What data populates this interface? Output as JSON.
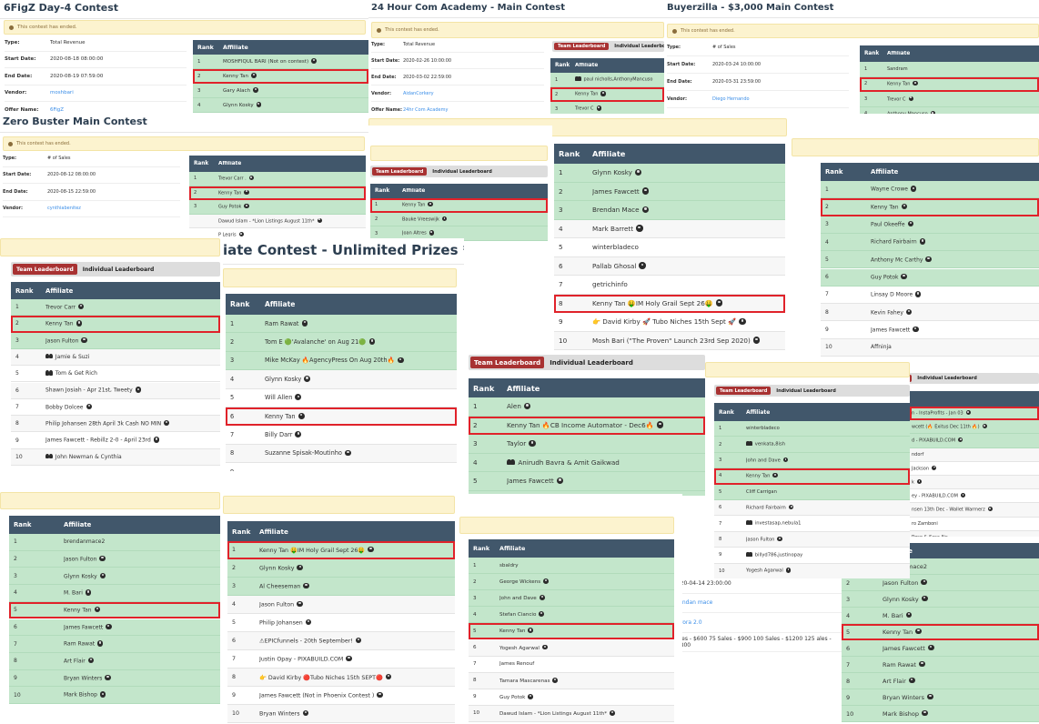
{
  "colors": {
    "header": "#41576b",
    "qualified_row": "#c3e6cb",
    "highlight": "#e0222a",
    "alert_bg": "#fcf3cf",
    "active_tab": "#a83232",
    "link": "#3b8ee8"
  },
  "panels": [
    {
      "title": "6FigZ Day-4 Contest",
      "alert": "This contest has ended.",
      "details": [
        {
          "label": "Type:",
          "value": "Total Revenue"
        },
        {
          "label": "Start Date:",
          "value": "2020-08-18 08:00:00"
        },
        {
          "label": "End Date:",
          "value": "2020-08-19 07:59:00"
        },
        {
          "label": "Vendor:",
          "value": "moshbari",
          "link": true
        },
        {
          "label": "Offer Name:",
          "value": "6FigZ",
          "link": true
        }
      ],
      "headers": [
        "Rank",
        "Affiliate"
      ],
      "rows": [
        {
          "rank": "1",
          "name": "MOSHFIQUL BARI (Not on contest)",
          "icon": "user",
          "green": true
        },
        {
          "rank": "2",
          "name": "Kenny Tan",
          "icon": "user",
          "green": true,
          "highlight": true
        },
        {
          "rank": "3",
          "name": "Gary Alach",
          "icon": "user",
          "green": true
        },
        {
          "rank": "4",
          "name": "Glynn Kosky",
          "icon": "user",
          "green": true
        }
      ]
    },
    {
      "title": "24 Hour Com Academy - Main Contest",
      "alert": "This contest has ended.",
      "details": [
        {
          "label": "Type:",
          "value": "Total Revenue"
        },
        {
          "label": "Start Date:",
          "value": "2020-02-26 10:00:00"
        },
        {
          "label": "End Date:",
          "value": "2020-03-02 22:59:00"
        },
        {
          "label": "Vendor:",
          "value": "AidanCorkery",
          "link": true
        },
        {
          "label": "Offer Name:",
          "value": "24hr Com Academy",
          "link": true
        }
      ],
      "tabs": [
        "Team Leaderboard",
        "Individual Leaderboard"
      ],
      "headers": [
        "Rank",
        "Affiliate"
      ],
      "rows": [
        {
          "rank": "1",
          "name": "paul nicholls,AnthonyMancuso",
          "icon": "team",
          "green": true
        },
        {
          "rank": "2",
          "name": "Kenny Tan",
          "icon": "user",
          "green": true,
          "highlight": true
        },
        {
          "rank": "3",
          "name": "Trevor C",
          "icon": "user",
          "green": true
        }
      ]
    },
    {
      "title": "Buyerzilla - $3,000 Main Contest",
      "alert": "This contest has ended.",
      "details": [
        {
          "label": "Type:",
          "value": "# of Sales"
        },
        {
          "label": "Start Date:",
          "value": "2020-03-24 10:00:00"
        },
        {
          "label": "End Date:",
          "value": "2020-03-31 23:59:00"
        },
        {
          "label": "Vendor:",
          "value": "Diego Hernando",
          "link": true
        }
      ],
      "headers": [
        "Rank",
        "Affiliate"
      ],
      "rows": [
        {
          "rank": "1",
          "name": "Sandram",
          "green": true
        },
        {
          "rank": "2",
          "name": "Kenny Tan",
          "icon": "user",
          "green": true,
          "highlight": true
        },
        {
          "rank": "3",
          "name": "Trevor C",
          "icon": "user",
          "green": true
        },
        {
          "rank": "4",
          "name": "Anthony Mancuso",
          "icon": "user",
          "green": true
        }
      ]
    },
    {
      "title": "Zero Buster Main Contest",
      "alert": "This contest has ended.",
      "details": [
        {
          "label": "Type:",
          "value": "# of Sales"
        },
        {
          "label": "Start Date:",
          "value": "2020-08-12 08:00:00"
        },
        {
          "label": "End Date:",
          "value": "2020-08-15 22:59:00"
        },
        {
          "label": "Vendor:",
          "value": "cynthiabenitez",
          "link": true
        }
      ],
      "headers": [
        "Rank",
        "Affiliate"
      ],
      "rows": [
        {
          "rank": "1",
          "name": "Trevor Carr .",
          "icon": "user",
          "green": true
        },
        {
          "rank": "2",
          "name": "Kenny Tan",
          "icon": "user",
          "green": true,
          "highlight": true
        },
        {
          "rank": "3",
          "name": "Guy Potok",
          "icon": "user",
          "green": true
        },
        {
          "name": "Dawud Islam - *Lion Listings August 11th*",
          "icon": "user"
        },
        {
          "name": "P Legris",
          "icon": "user"
        }
      ]
    },
    {
      "alert": "",
      "headers": [
        "Rank",
        "Affiliate"
      ],
      "rows": [
        {
          "rank": "1",
          "name": "Glynn Kosky",
          "icon": "user",
          "green": true
        },
        {
          "rank": "2",
          "name": "James Fawcett",
          "icon": "user",
          "green": true
        },
        {
          "rank": "3",
          "name": "Brendan Mace",
          "icon": "user",
          "green": true
        },
        {
          "rank": "4",
          "name": "Mark Barrett",
          "icon": "user"
        },
        {
          "rank": "5",
          "name": "winterbladeco"
        },
        {
          "rank": "6",
          "name": "Pallab Ghosal",
          "icon": "user"
        },
        {
          "rank": "7",
          "name": "getrichinfo"
        },
        {
          "rank": "8",
          "name": "Kenny Tan 🤑IM Holy Grail Sept 26🤑",
          "icon": "user",
          "highlight": true
        },
        {
          "rank": "9",
          "name": "👉 David Kirby 🚀 Tubo Niches 15th Sept 🚀",
          "icon": "user"
        },
        {
          "rank": "10",
          "name": "Mosh Bari (\"The Proven\" Launch 23rd Sep 2020)",
          "icon": "user"
        }
      ]
    },
    {
      "alert": "",
      "tabs": [
        "Team Leaderboard",
        "Individual Leaderboard"
      ],
      "headers": [
        "Rank",
        "Affiliate"
      ],
      "rows": [
        {
          "rank": "1",
          "name": "Kenny Tan",
          "icon": "user",
          "green": true,
          "highlight": true
        },
        {
          "rank": "2",
          "name": "Bauke Vreeswijk",
          "icon": "user",
          "green": true
        },
        {
          "rank": "3",
          "name": "Joan Altres",
          "icon": "user",
          "green": true
        }
      ]
    },
    {
      "alert": "",
      "headers": [
        "Rank",
        "Affiliate"
      ],
      "rows": [
        {
          "rank": "1",
          "name": "Wayne Crowe",
          "icon": "user",
          "green": true
        },
        {
          "rank": "2",
          "name": "Kenny Tan",
          "icon": "user",
          "green": true,
          "highlight": true
        },
        {
          "rank": "3",
          "name": "Paul Okeeffe",
          "icon": "user",
          "green": true
        },
        {
          "rank": "4",
          "name": "Richard Fairbairn",
          "icon": "user",
          "green": true
        },
        {
          "rank": "5",
          "name": "Anthony Mc Carthy",
          "icon": "user",
          "green": true
        },
        {
          "rank": "6",
          "name": "Guy Potok",
          "icon": "user",
          "green": true
        },
        {
          "rank": "7",
          "name": "Linsay D Moore",
          "icon": "user"
        },
        {
          "rank": "8",
          "name": "Kevin Fahey",
          "icon": "user"
        },
        {
          "rank": "9",
          "name": "James Fawcett",
          "icon": "user"
        },
        {
          "rank": "10",
          "name": "Affninja"
        }
      ]
    },
    {
      "alert": "",
      "tabs": [
        "Team Leaderboard",
        "Individual Leaderboard"
      ],
      "headers": [
        "Rank",
        "Affiliate"
      ],
      "rows": [
        {
          "rank": "1",
          "name": "Trevor Carr",
          "icon": "user",
          "green": true
        },
        {
          "rank": "2",
          "name": "Kenny Tan",
          "icon": "user",
          "green": true,
          "highlight": true
        },
        {
          "rank": "3",
          "name": "Jason Fulton",
          "icon": "user",
          "green": true
        },
        {
          "rank": "4",
          "name": "Jamie & Suzi",
          "icon": "team"
        },
        {
          "rank": "5",
          "name": "Tom & Get Rich",
          "icon": "team"
        },
        {
          "rank": "6",
          "name": "Shawn Josiah - Apr 21st, Tweety",
          "icon": "user"
        },
        {
          "rank": "7",
          "name": "Bobby Dolcee",
          "icon": "user"
        },
        {
          "rank": "8",
          "name": "Philip Johansen 28th April 3k Cash NO MIN",
          "icon": "user"
        },
        {
          "rank": "9",
          "name": "James Fawcett - Rebillz 2-0 - April 23rd",
          "icon": "user"
        },
        {
          "rank": "10",
          "name": "John Newman & Cynthia",
          "icon": "team"
        }
      ]
    },
    {
      "title": "iate Contest - Unlimited Prizes ***",
      "alert": "",
      "headers": [
        "Rank",
        "Affiliate"
      ],
      "rows": [
        {
          "rank": "1",
          "name": "Ram Rawat",
          "icon": "user",
          "green": true
        },
        {
          "rank": "2",
          "name": "Tom E 🟢'Avalanche' on Aug 21🟢",
          "icon": "user",
          "green": true
        },
        {
          "rank": "3",
          "name": "Mike McKay 🔥AgencyPress On Aug 20th🔥",
          "icon": "user",
          "green": true
        },
        {
          "rank": "4",
          "name": "Glynn Kosky",
          "icon": "user"
        },
        {
          "rank": "5",
          "name": "Will Allen",
          "icon": "user"
        },
        {
          "rank": "6",
          "name": "Kenny Tan",
          "icon": "user",
          "highlight": true
        },
        {
          "rank": "7",
          "name": "Billy Darr",
          "icon": "user"
        },
        {
          "rank": "8",
          "name": "Suzanne Spisak-Moutinho",
          "icon": "user"
        },
        {
          "rank": "9",
          "name": ""
        }
      ]
    },
    {
      "headers": [
        "Rank",
        "Affiliate"
      ],
      "tabs": [
        "Team Leaderboard",
        "Individual Leaderboard"
      ],
      "rows": [
        {
          "rank": "1",
          "name": "Alen",
          "icon": "user",
          "green": true
        },
        {
          "rank": "2",
          "name": "Kenny Tan 🔥CB Income Automator - Dec6🔥",
          "icon": "user",
          "green": true,
          "highlight": true
        },
        {
          "rank": "3",
          "name": "Taylor",
          "icon": "user",
          "green": true
        },
        {
          "rank": "4",
          "name": "Anirudh Bavra & Amit Gaikwad",
          "icon": "team",
          "green": true
        },
        {
          "rank": "5",
          "name": "James Fawcett",
          "icon": "user",
          "green": true
        },
        {
          "green": true
        },
        {
          "green": true
        }
      ]
    },
    {
      "tabs": [
        "Team Leaderboard",
        "Individual Leaderboard"
      ],
      "headers": [],
      "rows": [
        {
          "name": "n - InstaProfits - Jan 03",
          "icon": "user",
          "green": true,
          "highlight": true
        },
        {
          "name": "wcett (🔥 Exitus Dec 11th 🔥)",
          "icon": "user",
          "green": true
        },
        {
          "name": "d - PIXABUILD.COM",
          "icon": "user",
          "green": true
        },
        {
          "name": "ndorf"
        },
        {
          "name": "Jackson",
          "icon": "user"
        },
        {
          "name": "k",
          "icon": "user"
        },
        {
          "name": "ey - PIXABUILD.COM",
          "icon": "user"
        },
        {
          "name": "nsen 13th Dec - Wallet Warmerz",
          "icon": "user"
        },
        {
          "name": "ro Zamboni"
        },
        {
          "name": "Rose & Sasa Ilic"
        }
      ]
    },
    {
      "details": [
        {
          "value": "2020-04-14 23:00:00"
        },
        {
          "value": "brendan mace",
          "link": true
        },
        {
          "value": "Aurora 2.0",
          "link": true
        },
        {
          "value": "Sales - $600 75 Sales - $900 100 Sales - $1200 125 ales - $1800"
        }
      ],
      "headers": [
        "Rank",
        "Affiliate"
      ],
      "rows": [
        {
          "rank": "1",
          "name": "brendanmace2",
          "green": true
        },
        {
          "rank": "2",
          "name": "Jason Fulton",
          "icon": "user",
          "green": true
        },
        {
          "rank": "3",
          "name": "Glynn Kosky",
          "icon": "user",
          "green": true
        },
        {
          "rank": "4",
          "name": "M. Bari",
          "icon": "user",
          "green": true
        },
        {
          "rank": "5",
          "name": "Kenny Tan",
          "icon": "user",
          "green": true,
          "highlight": true
        },
        {
          "rank": "6",
          "name": "James Fawcett",
          "icon": "user",
          "green": true
        },
        {
          "rank": "7",
          "name": "Ram Rawat",
          "icon": "user",
          "green": true
        },
        {
          "rank": "8",
          "name": "Art Flair",
          "icon": "user",
          "green": true
        },
        {
          "rank": "9",
          "name": "Bryan Winters",
          "icon": "user",
          "green": true
        },
        {
          "rank": "10",
          "name": "Mark Bishop",
          "icon": "user",
          "green": true
        }
      ]
    },
    {
      "alert": "",
      "tabs": [
        "Team Leaderboard",
        "Individual Leaderboard"
      ],
      "headers": [
        "Rank",
        "Affiliate"
      ],
      "rows": [
        {
          "rank": "1",
          "name": "winterbladeco",
          "green": true
        },
        {
          "rank": "2",
          "name": "venkata,8ish",
          "icon": "team",
          "green": true
        },
        {
          "rank": "3",
          "name": "John and Dave",
          "icon": "user",
          "green": true
        },
        {
          "rank": "4",
          "name": "Kenny Tan",
          "icon": "user",
          "green": true,
          "highlight": true
        },
        {
          "rank": "5",
          "name": "Cliff Carrigan",
          "green": true
        },
        {
          "rank": "6",
          "name": "Richard Fairbairn",
          "icon": "user"
        },
        {
          "rank": "7",
          "name": "investasap,nebula1",
          "icon": "team"
        },
        {
          "rank": "8",
          "name": "Jason Fulton",
          "icon": "user"
        },
        {
          "rank": "9",
          "name": "billyd786,justinopay",
          "icon": "team"
        },
        {
          "rank": "10",
          "name": "Yogesh Agarwal",
          "icon": "user"
        }
      ]
    },
    {
      "alert": "",
      "headers": [
        "Rank",
        "Affiliate"
      ],
      "rows": [
        {
          "rank": "1",
          "name": "brendanmace2",
          "green": true
        },
        {
          "rank": "2",
          "name": "Jason Fulton",
          "icon": "user",
          "green": true
        },
        {
          "rank": "3",
          "name": "Glynn Kosky",
          "icon": "user",
          "green": true
        },
        {
          "rank": "4",
          "name": "M. Bari",
          "icon": "user",
          "green": true
        },
        {
          "rank": "5",
          "name": "Kenny Tan",
          "icon": "user",
          "green": true,
          "highlight": true
        },
        {
          "rank": "6",
          "name": "James Fawcett",
          "icon": "user",
          "green": true
        },
        {
          "rank": "7",
          "name": "Ram Rawat",
          "icon": "user",
          "green": true
        },
        {
          "rank": "8",
          "name": "Art Flair",
          "icon": "user",
          "green": true
        },
        {
          "rank": "9",
          "name": "Bryan Winters",
          "icon": "user",
          "green": true
        },
        {
          "rank": "10",
          "name": "Mark Bishop",
          "icon": "user",
          "green": true
        }
      ]
    },
    {
      "alert": "",
      "headers": [
        "Rank",
        "Affiliate"
      ],
      "rows": [
        {
          "rank": "1",
          "name": "Kenny Tan 🤑IM Holy Grail Sept 26🤑",
          "icon": "user",
          "green": true,
          "highlight": true
        },
        {
          "rank": "2",
          "name": "Glynn Kosky",
          "icon": "user",
          "green": true
        },
        {
          "rank": "3",
          "name": "Al Cheeseman",
          "icon": "user",
          "green": true
        },
        {
          "rank": "4",
          "name": "Jason Fulton",
          "icon": "user"
        },
        {
          "rank": "5",
          "name": "Philip Johansen",
          "icon": "user"
        },
        {
          "rank": "6",
          "name": "⚠EPICfunnels - 20th September!",
          "icon": "user"
        },
        {
          "rank": "7",
          "name": "Justin Opay - PIXABUILD.COM",
          "icon": "user"
        },
        {
          "rank": "8",
          "name": "👉 David Kirby 🔴Tubo Niches 15th SEPT🔴",
          "icon": "user"
        },
        {
          "rank": "9",
          "name": "James Fawcett (Not in Phoenix Contest )",
          "icon": "user"
        },
        {
          "rank": "10",
          "name": "Bryan Winters",
          "icon": "user"
        }
      ]
    },
    {
      "alert": "",
      "headers": [
        "Rank",
        "Affiliate"
      ],
      "rows": [
        {
          "rank": "1",
          "name": "sbaldry",
          "green": true
        },
        {
          "rank": "2",
          "name": "George Wickens",
          "icon": "user",
          "green": true
        },
        {
          "rank": "3",
          "name": "John and Dave",
          "icon": "user",
          "green": true
        },
        {
          "rank": "4",
          "name": "Stefan Ciancio",
          "icon": "user",
          "green": true
        },
        {
          "rank": "5",
          "name": "Kenny Tan",
          "icon": "user",
          "green": true,
          "highlight": true
        },
        {
          "rank": "6",
          "name": "Yogesh Agarwal",
          "icon": "user"
        },
        {
          "rank": "7",
          "name": "James Renouf"
        },
        {
          "rank": "8",
          "name": "Tamara Mascarenas",
          "icon": "user"
        },
        {
          "rank": "9",
          "name": "Guy Potok",
          "icon": "user"
        },
        {
          "rank": "10",
          "name": "Dawud Islam - *Lion Listings August 11th*",
          "icon": "user"
        }
      ]
    }
  ]
}
